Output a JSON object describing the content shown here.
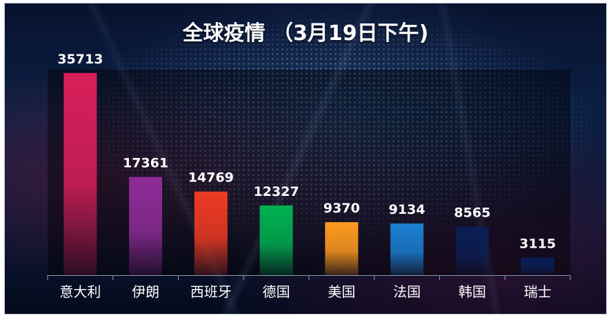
{
  "chart_data": {
    "type": "bar",
    "title": "全球疫情 （3月19日下午)",
    "categories": [
      "意大利",
      "伊朗",
      "西班牙",
      "德国",
      "美国",
      "法国",
      "韩国",
      "瑞士"
    ],
    "values": [
      35713,
      17361,
      14769,
      12327,
      9370,
      9134,
      8565,
      3115
    ],
    "colors": [
      "#d91f5a",
      "#8e2c97",
      "#ee3b24",
      "#00b050",
      "#ff9a1f",
      "#1a7fd1",
      "#0a1e55",
      "#0a1e55"
    ],
    "ylim": [
      0,
      38000
    ],
    "grid": false,
    "legend": "none"
  }
}
